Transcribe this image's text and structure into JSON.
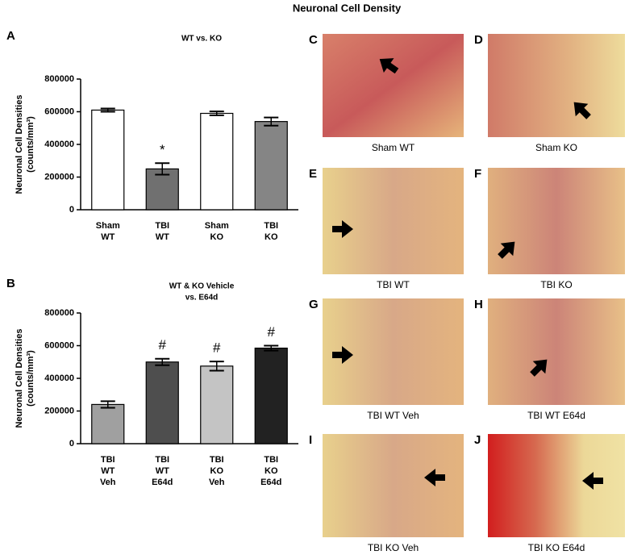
{
  "title": "Neuronal Cell Density",
  "chart_data": [
    {
      "type": "bar",
      "panel": "A",
      "title": [
        "WT vs. KO"
      ],
      "ylabel": [
        "Neuronal Cell Densities",
        "(counts/mm³)"
      ],
      "categories": [
        [
          "Sham",
          "WT"
        ],
        [
          "TBI",
          "WT"
        ],
        [
          "Sham",
          "KO"
        ],
        [
          "TBI",
          "KO"
        ]
      ],
      "values": [
        610000,
        250000,
        590000,
        540000
      ],
      "errors": [
        10000,
        35000,
        12000,
        25000
      ],
      "colors": [
        "#ffffff",
        "#707070",
        "#ffffff",
        "#858585"
      ],
      "annotations": [
        {
          "index": 1,
          "text": "*"
        }
      ],
      "ylim": [
        0,
        800000
      ],
      "yticks": [
        0,
        200000,
        400000,
        600000,
        800000
      ]
    },
    {
      "type": "bar",
      "panel": "B",
      "title": [
        "WT & KO Vehicle",
        "vs. E64d"
      ],
      "ylabel": [
        "Neuronal Cell Densities",
        "(counts/mm³)"
      ],
      "categories": [
        [
          "TBI",
          "WT",
          "Veh"
        ],
        [
          "TBI",
          "WT",
          "E64d"
        ],
        [
          "TBI",
          "KO",
          "Veh"
        ],
        [
          "TBI",
          "KO",
          "E64d"
        ]
      ],
      "values": [
        240000,
        500000,
        475000,
        585000
      ],
      "errors": [
        20000,
        20000,
        28000,
        15000
      ],
      "colors": [
        "#a0a0a0",
        "#4e4e4e",
        "#c4c4c4",
        "#222222"
      ],
      "annotations": [
        {
          "index": 1,
          "text": "#"
        },
        {
          "index": 2,
          "text": "#"
        },
        {
          "index": 3,
          "text": "#"
        }
      ],
      "ylim": [
        0,
        800000
      ],
      "yticks": [
        0,
        200000,
        400000,
        600000,
        800000
      ]
    }
  ],
  "panels": [
    {
      "label": "C",
      "caption": "Sham WT"
    },
    {
      "label": "D",
      "caption": "Sham KO"
    },
    {
      "label": "E",
      "caption": "TBI WT"
    },
    {
      "label": "F",
      "caption": "TBI KO"
    },
    {
      "label": "G",
      "caption": "TBI WT Veh"
    },
    {
      "label": "H",
      "caption": "TBI WT E64d"
    },
    {
      "label": "I",
      "caption": "TBI KO Veh"
    },
    {
      "label": "J",
      "caption": "TBI KO E64d"
    }
  ]
}
